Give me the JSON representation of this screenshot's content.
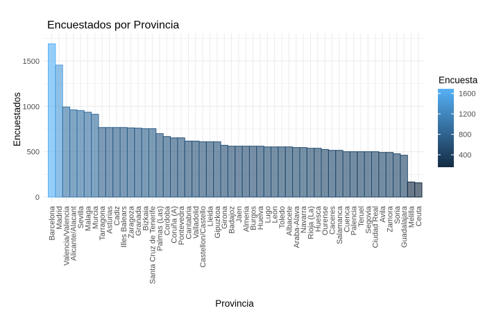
{
  "chart_data": {
    "type": "bar",
    "title": "Encuestados por Provincia",
    "xlabel": "Provincia",
    "ylabel": "Encuestados",
    "ylim": [
      0,
      1750
    ],
    "yticks": [
      0,
      500,
      1000,
      1500
    ],
    "grid": true,
    "legend": {
      "title": "Encuesta",
      "placement": "right",
      "ticks": [
        400,
        800,
        1200,
        1600
      ],
      "low_color": "#132B43",
      "high_color": "#56B1F7"
    },
    "categories": [
      "Barcelona",
      "Madrid",
      "Valencia/Valencia",
      "Alicante/Alacant",
      "Sevilla",
      "Malaga",
      "Murcia",
      "Tarragona",
      "Asturias",
      "Cadiz",
      "Illes Balears",
      "Zaragoza",
      "Granada",
      "Bizkaia",
      "Santa Cruz de Tenerife",
      "Palmas (Las)",
      "Cordoba",
      "Coruña (A)",
      "Pontevedra",
      "Cantabria",
      "Valladolid",
      "Castellon/Castello",
      "Lleida",
      "Gipuzkoa",
      "Girona",
      "Badajoz",
      "Jaen",
      "Almeria",
      "Burgos",
      "Huelva",
      "Lugo",
      "Leon",
      "Toledo",
      "Albacete",
      "Araba-Alava",
      "Navarra",
      "Rioja (La)",
      "Huesca",
      "Ourense",
      "Caceres",
      "Salamanca",
      "Cuenca",
      "Palencia",
      "Teruel",
      "Segovia",
      "Ciudad Real",
      "Avila",
      "Zamora",
      "Soria",
      "Guadalajara",
      "Melilla",
      "Ceuta"
    ],
    "values": [
      1690,
      1455,
      993,
      962,
      954,
      936,
      913,
      767,
      767,
      767,
      767,
      763,
      760,
      754,
      754,
      699,
      668,
      653,
      653,
      617,
      617,
      610,
      610,
      610,
      571,
      561,
      561,
      561,
      561,
      561,
      553,
      553,
      553,
      553,
      546,
      546,
      538,
      538,
      525,
      515,
      515,
      500,
      500,
      500,
      500,
      500,
      492,
      492,
      477,
      461,
      166,
      157
    ]
  }
}
